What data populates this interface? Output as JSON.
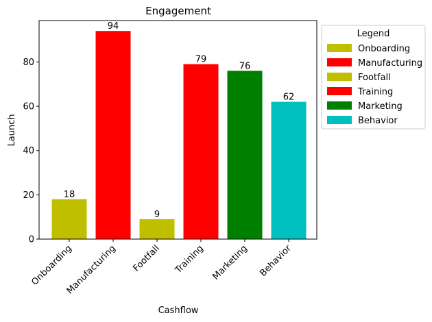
{
  "chart_data": {
    "type": "bar",
    "title": "Engagement",
    "xlabel": "Cashflow",
    "ylabel": "Launch",
    "categories": [
      "Onboarding",
      "Manufacturing",
      "Footfall",
      "Training",
      "Marketing",
      "Behavior"
    ],
    "values": [
      18,
      94,
      9,
      79,
      76,
      62
    ],
    "colors": [
      "#bfbf00",
      "#ff0000",
      "#bfbf00",
      "#ff0000",
      "#008000",
      "#00bfbf"
    ],
    "ylim": [
      0,
      98.7
    ],
    "yticks": [
      0,
      20,
      40,
      60,
      80
    ],
    "grid": false,
    "legend": {
      "title": "Legend",
      "placement": "outside-right-top",
      "entries": [
        "Onboarding",
        "Manufacturing",
        "Footfall",
        "Training",
        "Marketing",
        "Behavior"
      ]
    }
  }
}
